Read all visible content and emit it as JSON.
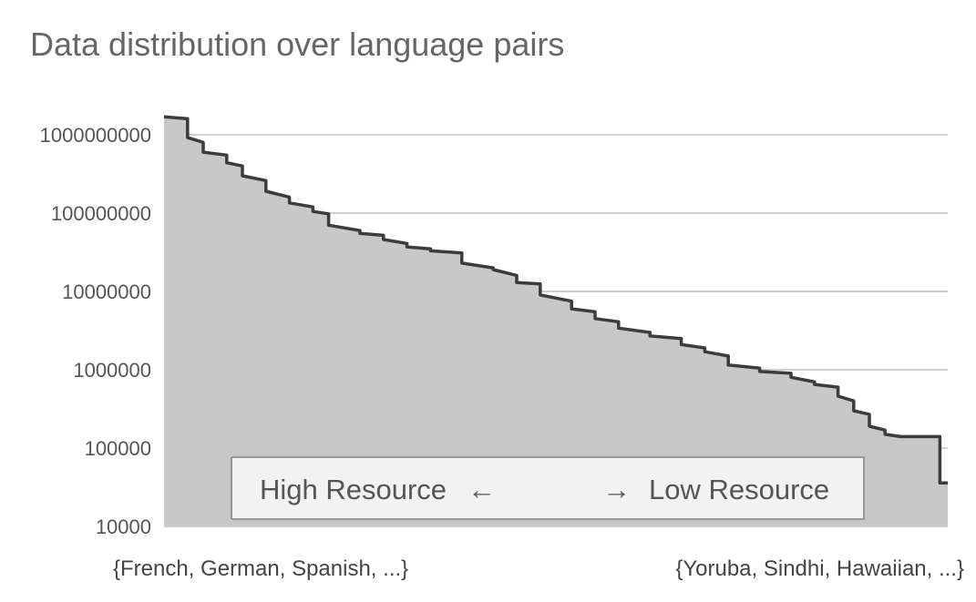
{
  "chart_data": {
    "type": "area",
    "title": "Data distribution over language pairs",
    "xlabel": "",
    "ylabel": "",
    "y_scale": "log",
    "ylim": [
      10000,
      2000000000
    ],
    "y_ticks": [
      10000,
      100000,
      1000000,
      10000000,
      100000000,
      1000000000
    ],
    "y_tick_labels": [
      "10000",
      "100000",
      "1000000",
      "10000000",
      "100000000",
      "1000000000"
    ],
    "x_category_labels": [
      "{French, German, Spanish, ...}",
      "{Yoruba, Sindhi, Hawaiian, ...}"
    ],
    "grid": true,
    "annotation": {
      "left": "High Resource",
      "left_arrow": "←",
      "right_arrow": "→",
      "right": "Low Resource"
    },
    "colors": {
      "fill": "#c8c8c8",
      "line": "#3c3c3c",
      "grid": "#bfbfbf"
    },
    "x": [
      0,
      0.03,
      0.03,
      0.05,
      0.05,
      0.08,
      0.08,
      0.1,
      0.1,
      0.13,
      0.13,
      0.16,
      0.16,
      0.19,
      0.19,
      0.21,
      0.21,
      0.25,
      0.25,
      0.28,
      0.28,
      0.31,
      0.31,
      0.34,
      0.34,
      0.38,
      0.38,
      0.42,
      0.42,
      0.45,
      0.45,
      0.48,
      0.48,
      0.52,
      0.52,
      0.55,
      0.55,
      0.58,
      0.58,
      0.62,
      0.62,
      0.66,
      0.66,
      0.69,
      0.69,
      0.72,
      0.72,
      0.76,
      0.76,
      0.8,
      0.8,
      0.83,
      0.83,
      0.86,
      0.86,
      0.88,
      0.88,
      0.9,
      0.9,
      0.92,
      0.92,
      0.94,
      0.94,
      0.96,
      0.96,
      0.975,
      0.975,
      0.99,
      0.99,
      1.0
    ],
    "values": [
      1700000000,
      1600000000,
      920000000,
      800000000,
      600000000,
      550000000,
      440000000,
      400000000,
      300000000,
      260000000,
      190000000,
      160000000,
      135000000,
      120000000,
      105000000,
      98000000,
      70000000,
      60000000,
      55000000,
      52000000,
      46000000,
      41000000,
      37000000,
      35000000,
      33000000,
      31000000,
      23000000,
      20000000,
      19000000,
      16000000,
      13000000,
      12500000,
      9000000,
      7500000,
      6000000,
      5500000,
      4500000,
      4100000,
      3400000,
      3000000,
      2700000,
      2500000,
      2100000,
      1900000,
      1700000,
      1500000,
      1150000,
      1050000,
      950000,
      900000,
      800000,
      700000,
      650000,
      600000,
      460000,
      400000,
      300000,
      270000,
      190000,
      170000,
      150000,
      140000,
      140000,
      140000,
      140000,
      140000,
      140000,
      140000,
      36000,
      36000
    ]
  }
}
